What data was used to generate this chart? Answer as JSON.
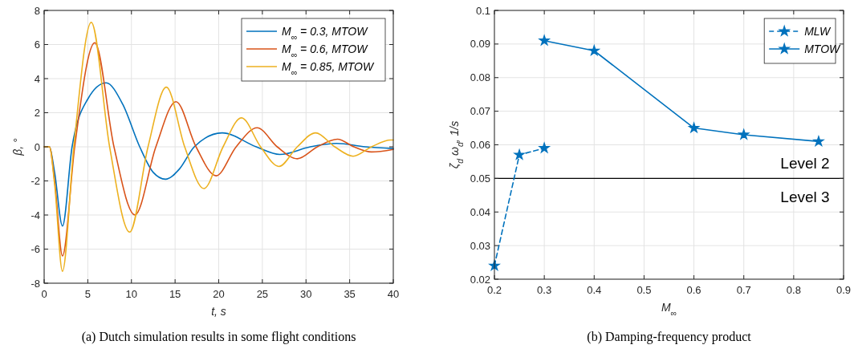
{
  "chart_data": [
    {
      "type": "line",
      "title": "(a) Dutch simulation results in some flight conditions",
      "xlabel": "t, s",
      "ylabel": "β, °",
      "xlim": [
        0,
        40
      ],
      "xticks": [
        0,
        5,
        10,
        15,
        20,
        25,
        30,
        35,
        40
      ],
      "ylim": [
        -8,
        8
      ],
      "yticks": [
        -8,
        -6,
        -4,
        -2,
        0,
        2,
        4,
        6,
        8
      ],
      "grid": true,
      "legend": "top right",
      "series": [
        {
          "name": "M$_{∞}$ = 0.3, MTOW",
          "color": "#0072bd",
          "x": [
            0,
            0.6,
            1.2,
            2.1,
            3.2,
            5,
            7.1,
            9,
            10.95,
            12.5,
            13.9,
            15.5,
            17.2,
            20.4,
            24.3,
            27,
            30.5,
            33.5,
            36.8,
            40
          ],
          "values": [
            0,
            0,
            -1.5,
            -4.65,
            0,
            2.8,
            3.75,
            2.5,
            0,
            -1.5,
            -1.9,
            -1.3,
            0,
            0.82,
            0,
            -0.45,
            0,
            0.2,
            0,
            -0.1
          ]
        },
        {
          "name": "M$_{∞}$ = 0.6, MTOW",
          "color": "#d95319",
          "x": [
            0,
            0.6,
            1.2,
            2.1,
            3.5,
            5.8,
            8,
            10.4,
            12.8,
            15.1,
            17.4,
            19.7,
            22,
            24.4,
            26.7,
            29,
            31.3,
            33.6,
            35.5,
            37.5,
            40
          ],
          "values": [
            0,
            0,
            -2,
            -6.4,
            0,
            6.1,
            0,
            -4,
            0,
            2.65,
            0,
            -1.7,
            0,
            1.12,
            0,
            -0.7,
            0,
            0.45,
            0,
            -0.3,
            -0.15
          ]
        },
        {
          "name": "M$_{∞}$ = 0.85, MTOW",
          "color": "#edb120",
          "x": [
            0,
            0.6,
            1.2,
            2.1,
            3.4,
            5.4,
            7.5,
            9.8,
            11.9,
            14,
            16.1,
            18.3,
            20.5,
            22.6,
            24.8,
            26.9,
            29,
            31.1,
            33.3,
            35.4,
            37.5,
            39.7,
            40
          ],
          "values": [
            0,
            0,
            -2.2,
            -7.3,
            0,
            7.3,
            0,
            -5,
            0,
            3.5,
            0,
            -2.45,
            0,
            1.7,
            0,
            -1.15,
            0,
            0.82,
            0,
            -0.55,
            0,
            0.4,
            0.4
          ]
        }
      ]
    },
    {
      "type": "line",
      "title": "(b) Damping-frequency product",
      "xlabel": "M$_{∞}$",
      "ylabel": "ζ$_{d}$ ω$_{d}$, 1/s",
      "xlim": [
        0.2,
        0.9
      ],
      "xticks": [
        0.2,
        0.3,
        0.4,
        0.5,
        0.6,
        0.7,
        0.8,
        0.9
      ],
      "ylim": [
        0.02,
        0.1
      ],
      "yticks": [
        0.02,
        0.03,
        0.04,
        0.05,
        0.06,
        0.07,
        0.08,
        0.09,
        0.1
      ],
      "grid": true,
      "legend": "top right",
      "marker": "star",
      "ref_lines": [
        {
          "axis": "y",
          "value": 0.05,
          "color": "#000000"
        }
      ],
      "annotations": [
        "Level 2",
        "Level 3"
      ],
      "series": [
        {
          "name": "MLW",
          "color": "#0072bd",
          "line_style": "dashed",
          "x": [
            0.2,
            0.25,
            0.3
          ],
          "values": [
            0.024,
            0.057,
            0.059
          ]
        },
        {
          "name": "MTOW",
          "color": "#0072bd",
          "line_style": "solid",
          "x": [
            0.3,
            0.4,
            0.6,
            0.7,
            0.85
          ],
          "values": [
            0.091,
            0.088,
            0.065,
            0.063,
            0.061
          ]
        }
      ]
    }
  ]
}
